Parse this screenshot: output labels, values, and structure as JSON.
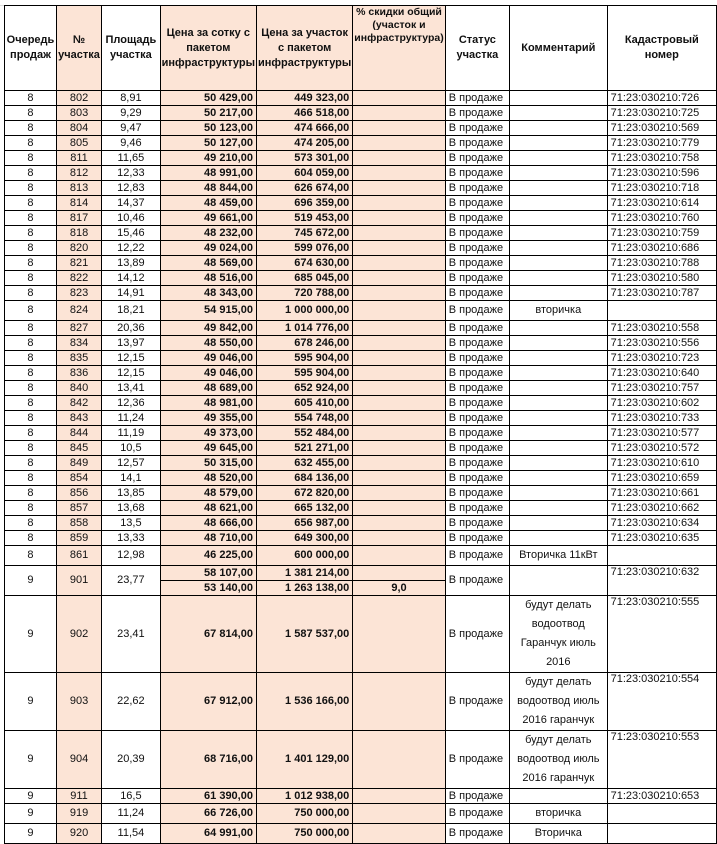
{
  "headers": [
    "Очередь продаж",
    "№ участка",
    "Площадь участка",
    "Цена за сотку с пакетом инфраструктуры",
    "Цена за участок с пакетом инфраструктуры",
    "% скидки общий (участок и инфраструктура)",
    "Статус участка",
    "Комментарий",
    "Кадастровый номер"
  ],
  "colors": {
    "highlight": "#fce4d6",
    "border": "#000000"
  },
  "rows": [
    {
      "q": "8",
      "n": "802",
      "area": "8,91",
      "ps": "50 429,00",
      "pp": "449 323,00",
      "disc": "",
      "status": "В продаже",
      "comment": "",
      "cad": "71:23:030210:726"
    },
    {
      "q": "8",
      "n": "803",
      "area": "9,29",
      "ps": "50 217,00",
      "pp": "466 518,00",
      "disc": "",
      "status": "В продаже",
      "comment": "",
      "cad": "71:23:030210:725"
    },
    {
      "q": "8",
      "n": "804",
      "area": "9,47",
      "ps": "50 123,00",
      "pp": "474 666,00",
      "disc": "",
      "status": "В продаже",
      "comment": "",
      "cad": "71:23:030210:569"
    },
    {
      "q": "8",
      "n": "805",
      "area": "9,46",
      "ps": "50 127,00",
      "pp": "474 205,00",
      "disc": "",
      "status": "В продаже",
      "comment": "",
      "cad": "71:23:030210:779"
    },
    {
      "q": "8",
      "n": "811",
      "area": "11,65",
      "ps": "49 210,00",
      "pp": "573 301,00",
      "disc": "",
      "status": "В продаже",
      "comment": "",
      "cad": "71:23:030210:758"
    },
    {
      "q": "8",
      "n": "812",
      "area": "12,33",
      "ps": "48 991,00",
      "pp": "604 059,00",
      "disc": "",
      "status": "В продаже",
      "comment": "",
      "cad": "71:23:030210:596"
    },
    {
      "q": "8",
      "n": "813",
      "area": "12,83",
      "ps": "48 844,00",
      "pp": "626 674,00",
      "disc": "",
      "status": "В продаже",
      "comment": "",
      "cad": "71:23:030210:718"
    },
    {
      "q": "8",
      "n": "814",
      "area": "14,37",
      "ps": "48 459,00",
      "pp": "696 359,00",
      "disc": "",
      "status": "В продаже",
      "comment": "",
      "cad": "71:23:030210:614"
    },
    {
      "q": "8",
      "n": "817",
      "area": "10,46",
      "ps": "49 661,00",
      "pp": "519 453,00",
      "disc": "",
      "status": "В продаже",
      "comment": "",
      "cad": "71:23:030210:760"
    },
    {
      "q": "8",
      "n": "818",
      "area": "15,46",
      "ps": "48 232,00",
      "pp": "745 672,00",
      "disc": "",
      "status": "В продаже",
      "comment": "",
      "cad": "71:23:030210:759"
    },
    {
      "q": "8",
      "n": "820",
      "area": "12,22",
      "ps": "49 024,00",
      "pp": "599 076,00",
      "disc": "",
      "status": "В продаже",
      "comment": "",
      "cad": "71:23:030210:686"
    },
    {
      "q": "8",
      "n": "821",
      "area": "13,89",
      "ps": "48 569,00",
      "pp": "674 630,00",
      "disc": "",
      "status": "В продаже",
      "comment": "",
      "cad": "71:23:030210:788"
    },
    {
      "q": "8",
      "n": "822",
      "area": "14,12",
      "ps": "48 516,00",
      "pp": "685 045,00",
      "disc": "",
      "status": "В продаже",
      "comment": "",
      "cad": "71:23:030210:580"
    },
    {
      "q": "8",
      "n": "823",
      "area": "14,91",
      "ps": "48 343,00",
      "pp": "720 788,00",
      "disc": "",
      "status": "В продаже",
      "comment": "",
      "cad": "71:23:030210:787"
    },
    {
      "q": "8",
      "n": "824",
      "area": "18,21",
      "ps": "54 915,00",
      "pp": "1 000 000,00",
      "disc": "",
      "status": "В продаже",
      "comment": "вторичка",
      "cad": ""
    },
    {
      "q": "8",
      "n": "827",
      "area": "20,36",
      "ps": "49 842,00",
      "pp": "1 014 776,00",
      "disc": "",
      "status": "В продаже",
      "comment": "",
      "cad": "71:23:030210:558"
    },
    {
      "q": "8",
      "n": "834",
      "area": "13,97",
      "ps": "48 550,00",
      "pp": "678 246,00",
      "disc": "",
      "status": "В продаже",
      "comment": "",
      "cad": "71:23:030210:556"
    },
    {
      "q": "8",
      "n": "835",
      "area": "12,15",
      "ps": "49 046,00",
      "pp": "595 904,00",
      "disc": "",
      "status": "В продаже",
      "comment": "",
      "cad": "71:23:030210:723"
    },
    {
      "q": "8",
      "n": "836",
      "area": "12,15",
      "ps": "49 046,00",
      "pp": "595 904,00",
      "disc": "",
      "status": "В продаже",
      "comment": "",
      "cad": "71:23:030210:640"
    },
    {
      "q": "8",
      "n": "840",
      "area": "13,41",
      "ps": "48 689,00",
      "pp": "652 924,00",
      "disc": "",
      "status": "В продаже",
      "comment": "",
      "cad": "71:23:030210:757"
    },
    {
      "q": "8",
      "n": "842",
      "area": "12,36",
      "ps": "48 981,00",
      "pp": "605 410,00",
      "disc": "",
      "status": "В продаже",
      "comment": "",
      "cad": "71:23:030210:602"
    },
    {
      "q": "8",
      "n": "843",
      "area": "11,24",
      "ps": "49 355,00",
      "pp": "554 748,00",
      "disc": "",
      "status": "В продаже",
      "comment": "",
      "cad": "71:23:030210:733"
    },
    {
      "q": "8",
      "n": "844",
      "area": "11,19",
      "ps": "49 373,00",
      "pp": "552 484,00",
      "disc": "",
      "status": "В продаже",
      "comment": "",
      "cad": "71:23:030210:577"
    },
    {
      "q": "8",
      "n": "845",
      "area": "10,5",
      "ps": "49 645,00",
      "pp": "521 271,00",
      "disc": "",
      "status": "В продаже",
      "comment": "",
      "cad": "71:23:030210:572"
    },
    {
      "q": "8",
      "n": "849",
      "area": "12,57",
      "ps": "50 315,00",
      "pp": "632 455,00",
      "disc": "",
      "status": "В продаже",
      "comment": "",
      "cad": "71:23:030210:610"
    },
    {
      "q": "8",
      "n": "854",
      "area": "14,1",
      "ps": "48 520,00",
      "pp": "684 136,00",
      "disc": "",
      "status": "В продаже",
      "comment": "",
      "cad": "71:23:030210:659"
    },
    {
      "q": "8",
      "n": "856",
      "area": "13,85",
      "ps": "48 579,00",
      "pp": "672 820,00",
      "disc": "",
      "status": "В продаже",
      "comment": "",
      "cad": "71:23:030210:661"
    },
    {
      "q": "8",
      "n": "857",
      "area": "13,68",
      "ps": "48 621,00",
      "pp": "665 132,00",
      "disc": "",
      "status": "В продаже",
      "comment": "",
      "cad": "71:23:030210:662"
    },
    {
      "q": "8",
      "n": "858",
      "area": "13,5",
      "ps": "48 666,00",
      "pp": "656 987,00",
      "disc": "",
      "status": "В продаже",
      "comment": "",
      "cad": "71:23:030210:634"
    },
    {
      "q": "8",
      "n": "859",
      "area": "13,33",
      "ps": "48 710,00",
      "pp": "649 300,00",
      "disc": "",
      "status": "В продаже",
      "comment": "",
      "cad": "71:23:030210:635"
    },
    {
      "q": "8",
      "n": "861",
      "area": "12,98",
      "ps": "46 225,00",
      "pp": "600 000,00",
      "disc": "",
      "status": "В продаже",
      "comment": "Вторичка 11кВт",
      "cad": ""
    },
    {
      "q": "9",
      "n": "901",
      "area": "23,77",
      "sub": [
        {
          "ps": "58 107,00",
          "pp": "1 381 214,00",
          "disc": ""
        },
        {
          "ps": "53 140,00",
          "pp": "1 263 138,00",
          "disc": "9,0"
        }
      ],
      "status": "В продаже",
      "comment": "",
      "cad": "71:23:030210:632"
    },
    {
      "q": "9",
      "n": "902",
      "area": "23,41",
      "ps": "67 814,00",
      "pp": "1 587 537,00",
      "disc": "",
      "status": "В продаже",
      "comment": "будут делать водоотвод Гаранчук июль 2016",
      "cad": "71:23:030210:555",
      "tall": true
    },
    {
      "q": "9",
      "n": "903",
      "area": "22,62",
      "ps": "67 912,00",
      "pp": "1 536 166,00",
      "disc": "",
      "status": "В продаже",
      "comment": "будут делать водоотвод июль 2016 гаранчук",
      "cad": "71:23:030210:554",
      "tall": true
    },
    {
      "q": "9",
      "n": "904",
      "area": "20,39",
      "ps": "68 716,00",
      "pp": "1 401 129,00",
      "disc": "",
      "status": "В продаже",
      "comment": "будут делать водоотвод июль 2016 гаранчук",
      "cad": "71:23:030210:553",
      "tall": true
    },
    {
      "q": "9",
      "n": "911",
      "area": "16,5",
      "ps": "61 390,00",
      "pp": "1 012 938,00",
      "disc": "",
      "status": "В продаже",
      "comment": "",
      "cad": "71:23:030210:653"
    },
    {
      "q": "9",
      "n": "919",
      "area": "11,24",
      "ps": "66 726,00",
      "pp": "750 000,00",
      "disc": "",
      "status": "В продаже",
      "comment": "вторичка",
      "cad": ""
    },
    {
      "q": "9",
      "n": "920",
      "area": "11,54",
      "ps": "64 991,00",
      "pp": "750 000,00",
      "disc": "",
      "status": "В продаже",
      "comment": "Вторичка",
      "cad": ""
    }
  ]
}
